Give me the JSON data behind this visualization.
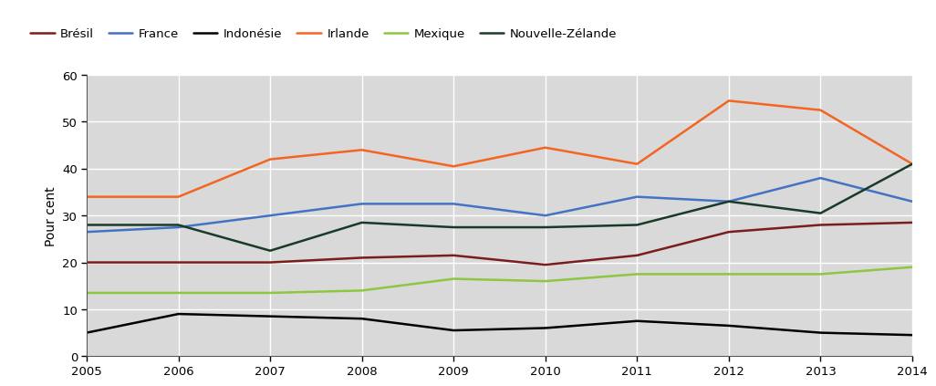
{
  "years": [
    2005,
    2006,
    2007,
    2008,
    2009,
    2010,
    2011,
    2012,
    2013,
    2014
  ],
  "series": {
    "Brésil": {
      "values": [
        20.0,
        20.0,
        20.0,
        21.0,
        21.5,
        19.5,
        21.5,
        26.5,
        28.0,
        28.5
      ],
      "color": "#7B1D1D",
      "linewidth": 1.8
    },
    "France": {
      "values": [
        26.5,
        27.5,
        30.0,
        32.5,
        32.5,
        30.0,
        34.0,
        33.0,
        38.0,
        33.0
      ],
      "color": "#4472C4",
      "linewidth": 1.8
    },
    "Indonésie": {
      "values": [
        5.0,
        9.0,
        8.5,
        8.0,
        5.5,
        6.0,
        7.5,
        6.5,
        5.0,
        4.5
      ],
      "color": "#000000",
      "linewidth": 1.8
    },
    "Irlande": {
      "values": [
        34.0,
        34.0,
        42.0,
        44.0,
        40.5,
        44.5,
        41.0,
        54.5,
        52.5,
        41.0
      ],
      "color": "#F26522",
      "linewidth": 1.8
    },
    "Mexique": {
      "values": [
        13.5,
        13.5,
        13.5,
        14.0,
        16.5,
        16.0,
        17.5,
        17.5,
        17.5,
        19.0
      ],
      "color": "#8DC63F",
      "linewidth": 1.8
    },
    "Nouvelle-Zélande": {
      "values": [
        28.0,
        28.0,
        22.5,
        28.5,
        27.5,
        27.5,
        28.0,
        33.0,
        30.5,
        41.0
      ],
      "color": "#1A3A28",
      "linewidth": 1.8
    }
  },
  "ylim": [
    0,
    60
  ],
  "yticks": [
    0,
    10,
    20,
    30,
    40,
    50,
    60
  ],
  "ylabel": "Pour cent",
  "plot_bg": "#D9D9D9",
  "fig_bg": "#FFFFFF",
  "legend_bg": "#E8E8E8",
  "grid_color": "#FFFFFF",
  "legend_order": [
    "Brésil",
    "France",
    "Indonésie",
    "Irlande",
    "Mexique",
    "Nouvelle-Zélande"
  ],
  "legend_fontsize": 9.5,
  "axis_fontsize": 9.5,
  "ylabel_fontsize": 10
}
